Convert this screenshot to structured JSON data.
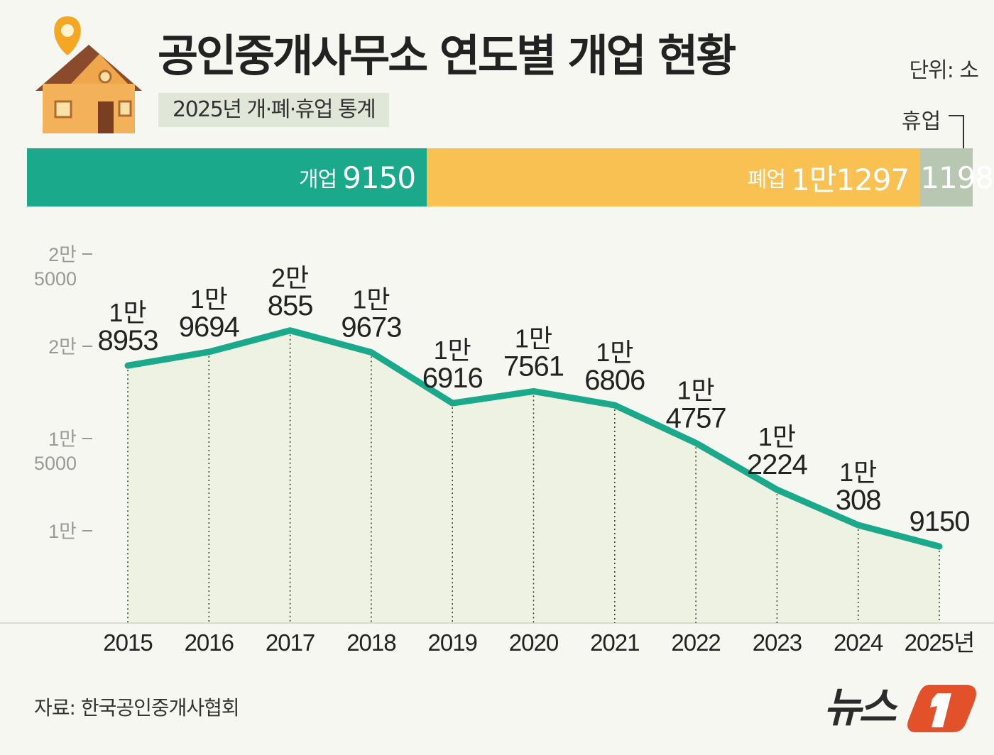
{
  "header": {
    "title": "공인중개사무소 연도별 개업 현황",
    "subtitle": "2025년 개·폐·휴업 통계",
    "unit": "단위: 소",
    "closed_label": "휴업"
  },
  "stack_bar": {
    "segments": [
      {
        "label": "개업",
        "value": 9150,
        "display": "9150",
        "color": "#1aa98a"
      },
      {
        "label": "폐업",
        "value": 11297,
        "display": "1만1297",
        "color": "#f8c152"
      },
      {
        "label": "휴업",
        "value": 1198,
        "display": "1198",
        "color": "#b7c7b1"
      }
    ]
  },
  "chart_data": {
    "type": "area",
    "title": "",
    "xlabel": "",
    "ylabel": "",
    "categories": [
      "2015",
      "2016",
      "2017",
      "2018",
      "2019",
      "2020",
      "2021",
      "2022",
      "2023",
      "2024",
      "2025년"
    ],
    "values": [
      18953,
      19694,
      20855,
      19673,
      16916,
      17561,
      16806,
      14757,
      12224,
      10308,
      9150
    ],
    "data_labels": [
      [
        "1만",
        "8953"
      ],
      [
        "1만",
        "9694"
      ],
      [
        "2만",
        "855"
      ],
      [
        "1만",
        "9673"
      ],
      [
        "1만",
        "6916"
      ],
      [
        "1만",
        "7561"
      ],
      [
        "1만",
        "6806"
      ],
      [
        "1만",
        "4757"
      ],
      [
        "1만",
        "2224"
      ],
      [
        "1만",
        "308"
      ],
      [
        "",
        "9150"
      ]
    ],
    "ylim": [
      5000,
      25000
    ],
    "yticks": [
      {
        "value": 25000,
        "label": [
          "2만",
          "5000"
        ]
      },
      {
        "value": 20000,
        "label": [
          "2만"
        ]
      },
      {
        "value": 15000,
        "label": [
          "1만",
          "5000"
        ]
      },
      {
        "value": 10000,
        "label": [
          "1만"
        ]
      }
    ],
    "grid": false,
    "line_color": "#1aa98a",
    "fill_color": "#edf2e3"
  },
  "footer": {
    "source": "자료: 한국공인중개사협회",
    "logo_text": "뉴스1"
  }
}
